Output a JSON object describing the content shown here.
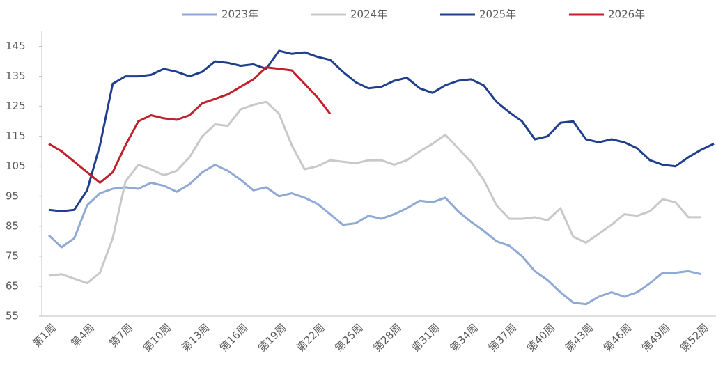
{
  "chart_data": {
    "type": "line",
    "categories": [
      "第1周",
      null,
      null,
      "第4周",
      null,
      null,
      "第7周",
      null,
      null,
      "第10周",
      null,
      null,
      "第13周",
      null,
      null,
      "第16周",
      null,
      null,
      "第19周",
      null,
      null,
      "第22周",
      null,
      null,
      "第25周",
      null,
      null,
      "第28周",
      null,
      null,
      "第31周",
      null,
      null,
      "第34周",
      null,
      null,
      "第37周",
      null,
      null,
      "第40周",
      null,
      null,
      "第43周",
      null,
      null,
      "第46周",
      null,
      null,
      "第49周",
      null,
      null,
      "第52周",
      null
    ],
    "series": [
      {
        "name": "2023年",
        "color": "#8ea9d4",
        "values": [
          82,
          78,
          81,
          92,
          96,
          97.5,
          98,
          97.5,
          99.5,
          98.5,
          96.5,
          99,
          103,
          105.5,
          103.5,
          100.5,
          97,
          98,
          95,
          96,
          94.5,
          92.5,
          89,
          85.5,
          86,
          88.5,
          87.5,
          89,
          91,
          93.5,
          93,
          94.5,
          90,
          86.5,
          83.5,
          80,
          78.5,
          75,
          70,
          67,
          63,
          59.5,
          59,
          61.5,
          63,
          61.5,
          63,
          66,
          69.5,
          69.5,
          70,
          69,
          null
        ]
      },
      {
        "name": "2024年",
        "color": "#c8c8c8",
        "values": [
          68.5,
          69,
          67.5,
          66,
          69.5,
          81,
          100,
          105.5,
          104,
          102,
          103.5,
          108,
          115,
          119,
          118.5,
          124,
          125.5,
          126.5,
          122.5,
          112,
          104,
          105,
          107,
          106.5,
          106,
          107,
          107,
          105.5,
          107,
          110,
          112.5,
          115.5,
          111,
          106.5,
          100.5,
          92,
          87.5,
          87.5,
          88,
          87,
          91,
          81.5,
          79.5,
          82.5,
          85.5,
          89,
          88.5,
          90,
          94,
          93,
          88,
          88,
          null
        ]
      },
      {
        "name": "2025年",
        "color": "#1f3f8c",
        "values": [
          90.5,
          90,
          90.5,
          97,
          112,
          132.5,
          135,
          135,
          135.5,
          137.5,
          136.5,
          135,
          136.5,
          140,
          139.5,
          138.5,
          139,
          137.5,
          143.5,
          142.5,
          143,
          141.5,
          140.5,
          136.5,
          133,
          131,
          131.5,
          133.5,
          134.5,
          131,
          129.5,
          132,
          133.5,
          134,
          132,
          126.5,
          123,
          120,
          114,
          115,
          119.5,
          120,
          114,
          113,
          114,
          113,
          111,
          107,
          105.5,
          105,
          108,
          110.5,
          112.5
        ]
      },
      {
        "name": "2026年",
        "color": "#c0202a",
        "values": [
          112.5,
          110,
          106.5,
          103,
          99.5,
          103,
          112,
          120,
          122,
          121,
          120.5,
          122,
          126,
          127.5,
          129,
          131.5,
          134,
          138,
          137.5,
          137,
          132.5,
          128,
          122.5,
          null,
          null,
          null,
          null,
          null,
          null,
          null,
          null,
          null,
          null,
          null,
          null,
          null,
          null,
          null,
          null,
          null,
          null,
          null,
          null,
          null,
          null,
          null,
          null,
          null,
          null,
          null,
          null,
          null,
          null
        ]
      }
    ],
    "ylim": [
      55,
      150
    ],
    "yticks": [
      55,
      65,
      75,
      85,
      95,
      105,
      115,
      125,
      135,
      145
    ]
  }
}
